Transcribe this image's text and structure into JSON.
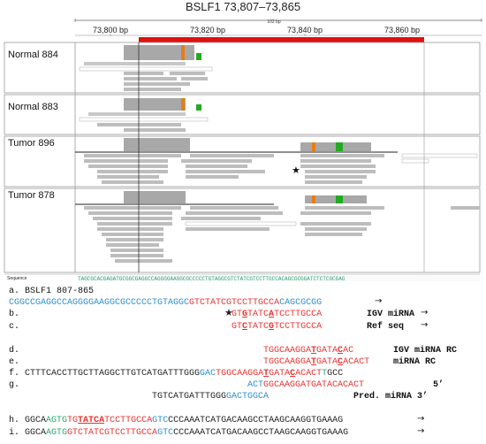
{
  "title": "BSLF1 73,807–73,865",
  "ruler": {
    "span_label": "102 bp",
    "ticks": [
      "73,800 bp",
      "73,820 bp",
      "73,840 bp",
      "73,860 bp"
    ]
  },
  "tracks": [
    {
      "name": "Normal 884"
    },
    {
      "name": "Normal 883"
    },
    {
      "name": "Tumor 896"
    },
    {
      "name": "Tumor 878"
    }
  ],
  "sequence_label": "Sequence",
  "marker_star": "★",
  "lines": {
    "a_label": "a. BSLF1 807-865",
    "a_seq_blue1": "CGGCCGAGGCCAGGGGAAGGCGCCCCCTGTAGGC",
    "a_seq_red": "GTCTATCGTCCTTGCCA",
    "a_seq_blue2": "CAGCGCGG",
    "b_prefix": "b.",
    "b_star": "★",
    "b_seq_1": "GT",
    "b_seq_2": "G",
    "b_seq_3": "TATC",
    "b_seq_4": "A",
    "b_seq_5": "TCCTTGCCA",
    "b_tag": "IGV miRNA",
    "c_prefix": "c.",
    "c_seq_1": "GT",
    "c_seq_2": "C",
    "c_seq_3": "TATC",
    "c_seq_4": "G",
    "c_seq_5": "TCCTTGCCA",
    "c_tag": "Ref seq",
    "d_prefix": "d.",
    "d_seq_1": "TGGCAAGGA",
    "d_seq_2": "T",
    "d_seq_3": "GATA",
    "d_seq_4": "C",
    "d_seq_5": "AC",
    "d_tag": "IGV miRNA RC",
    "e_prefix": "e.",
    "e_seq_1": "TGGCAAGGA",
    "e_seq_2": "T",
    "e_seq_3": "GATA",
    "e_seq_4": "C",
    "e_seq_5": "ACACT",
    "e_tag": "miRNA RC",
    "f_prefix": "f.",
    "f_seq_blk": "CTTTCACCTTGCTTAGGCTTGTCATGATTTGGG",
    "f_seq_blue": "GAC",
    "f_seq_red1": "TGGCAAGGA",
    "f_seq_red2": "T",
    "f_seq_red3": "GATA",
    "f_seq_red4": "C",
    "f_seq_red5": "ACACT",
    "f_seq_grn": "T",
    "f_seq_tail": "GCC",
    "g_prefix": "g.",
    "g1_seq_blue": "ACT",
    "g1_seq_red": "GGCAAGGATGATACACACT",
    "g1_tag": "5’",
    "g2_seq_blk": "TGTCATGATTTGGG",
    "g2_seq_blue": "GACTGGCA",
    "g2_tag": "Pred. miRNA 3’",
    "h_prefix": "h.",
    "h_seq_1": "GGCA",
    "h_seq_2": "AGTG",
    "h_seq_3": "TG",
    "h_seq_4": "TATC",
    "h_seq_5": "A",
    "h_seq_6": "TCCTTGCCA",
    "h_seq_7": "GTC",
    "h_seq_8": "CCCAAATCATGACAAGCCTAAGCAAGGTGAAAG",
    "i_prefix": "i.",
    "i_seq_1": "GGCA",
    "i_seq_2": "AGTG",
    "i_seq_3": "GTCTATCGTCCTTGCCA",
    "i_seq_4": "GTC",
    "i_seq_5": "CCCAAATCATGACAAGCCTAAGCAAGGTGAAAG",
    "arrow": "→"
  },
  "colors": {
    "red": "#e8312f",
    "blue": "#2a8fd0",
    "green": "#2aa574",
    "read_gray": "#b9b9b9",
    "coverage_gray": "#a8a8a8",
    "region_bar": "#e01010"
  }
}
